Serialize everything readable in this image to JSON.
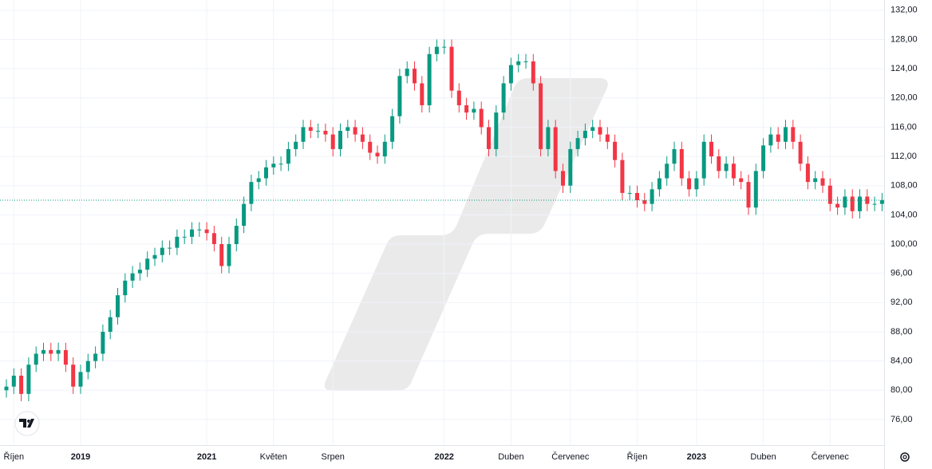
{
  "chart_data": {
    "type": "candlestick",
    "categories": [
      null,
      "Říjen",
      null,
      null,
      null,
      null,
      null,
      null,
      null,
      null,
      "2019",
      null,
      null,
      null,
      null,
      null,
      null,
      null,
      null,
      null,
      null,
      null,
      null,
      null,
      null,
      null,
      null,
      "2021",
      null,
      null,
      null,
      null,
      null,
      null,
      null,
      null,
      "Květen",
      null,
      null,
      null,
      null,
      null,
      null,
      null,
      "Srpen",
      null,
      null,
      null,
      null,
      null,
      null,
      null,
      null,
      null,
      null,
      null,
      null,
      null,
      null,
      "2022",
      null,
      null,
      null,
      null,
      null,
      null,
      null,
      null,
      "Duben",
      null,
      null,
      null,
      null,
      null,
      null,
      null,
      "Červenec",
      null,
      null,
      null,
      null,
      null,
      null,
      null,
      null,
      "Říjen",
      null,
      null,
      null,
      null,
      null,
      null,
      null,
      "2023",
      null,
      null,
      null,
      null,
      null,
      null,
      null,
      null,
      "Duben",
      null,
      null,
      null,
      null,
      null,
      null,
      null,
      null,
      "Červenec",
      null,
      null,
      null,
      null,
      null,
      null,
      null
    ],
    "open": [
      80,
      80.5,
      82,
      79.5,
      83.5,
      85,
      85.5,
      85,
      85.5,
      83.5,
      80.5,
      82.5,
      84,
      85,
      88,
      90,
      93,
      95,
      96,
      96.5,
      98,
      98.5,
      99.5,
      99.5,
      101,
      101,
      102,
      102,
      101.5,
      100,
      97,
      100,
      102.5,
      105.5,
      108.5,
      109,
      110.5,
      111,
      111,
      113,
      114,
      116,
      115.5,
      115.5,
      115,
      113,
      115.5,
      116,
      115,
      114,
      112.5,
      112,
      114,
      117.5,
      123,
      124,
      122,
      119,
      126,
      127,
      127,
      121,
      119,
      118,
      118.5,
      116,
      113,
      118,
      122,
      124.5,
      125,
      125,
      122,
      113,
      116,
      110,
      108,
      113,
      114.5,
      115.5,
      116,
      115,
      114,
      111.5,
      107,
      107,
      106,
      105.5,
      107.5,
      109,
      111,
      113,
      109,
      107.5,
      109,
      114,
      112,
      110,
      111,
      109,
      108.5,
      105,
      110,
      113.5,
      115,
      114,
      116,
      114,
      111,
      108.5,
      109,
      108,
      105.5,
      105,
      106.5,
      104.5,
      106.5,
      105.5,
      105.5
    ],
    "high": [
      81.5,
      83,
      83,
      84.5,
      86,
      86.5,
      86.5,
      86.5,
      86.5,
      84.5,
      83.5,
      85,
      86,
      89,
      91,
      94,
      96,
      97,
      97.5,
      99,
      99.5,
      100.5,
      100.5,
      102,
      102,
      103,
      103,
      103,
      102.5,
      101,
      101,
      103.5,
      106.5,
      109.5,
      110,
      111.5,
      112,
      112,
      114,
      115,
      117,
      117,
      116.5,
      116.5,
      116,
      116.5,
      117,
      117,
      116,
      115,
      113.5,
      115,
      118.5,
      124,
      125,
      125,
      123,
      127,
      128,
      128,
      128,
      122,
      120,
      119.5,
      119.5,
      117,
      119,
      123,
      125.5,
      126,
      126,
      126,
      123,
      117,
      117,
      111,
      114,
      115.5,
      116.5,
      117,
      117,
      116,
      115,
      112.5,
      108,
      108,
      107,
      108.5,
      110,
      112,
      114,
      114,
      110,
      110,
      115,
      115,
      113,
      112,
      112,
      110,
      109.5,
      111,
      114.5,
      116,
      116,
      117,
      117,
      115,
      112,
      110,
      110,
      109,
      106.5,
      107.5,
      107.5,
      107.5,
      107.5,
      106.5,
      107
    ],
    "low": [
      79,
      79.5,
      78.5,
      78.5,
      82.5,
      84,
      84,
      84,
      82.5,
      79.5,
      79.5,
      81.5,
      83,
      84,
      87,
      89,
      92,
      94,
      95,
      95.5,
      97,
      97.5,
      98.5,
      98.5,
      100,
      100,
      101,
      100.5,
      99,
      96,
      96,
      99,
      101.5,
      104.5,
      107.5,
      108,
      109.5,
      110,
      110,
      112,
      113,
      114.5,
      114.5,
      114,
      112,
      112,
      114.5,
      114,
      113,
      111.5,
      111,
      111,
      113,
      116.5,
      122,
      121,
      118,
      118,
      125,
      126,
      120,
      118,
      117,
      117,
      115,
      112,
      112,
      117,
      121,
      123.5,
      124,
      121,
      112,
      112,
      109,
      107,
      107,
      112,
      113.5,
      114.5,
      114,
      113,
      110.5,
      106,
      106,
      105,
      104.5,
      104.5,
      106.5,
      108,
      110,
      108,
      106.5,
      106.5,
      108,
      111,
      109,
      109,
      108,
      107.5,
      104,
      104,
      109,
      112.5,
      113,
      113,
      113,
      110,
      107.5,
      107.5,
      107,
      104.5,
      104,
      104,
      103.5,
      103.5,
      104.5,
      104.5,
      104.5
    ],
    "close": [
      80.5,
      82,
      79.5,
      83.5,
      85,
      85.5,
      85,
      85.5,
      83.5,
      80.5,
      82.5,
      84,
      85,
      88,
      90,
      93,
      95,
      96,
      96.5,
      98,
      98.5,
      99.5,
      99.5,
      101,
      101,
      102,
      102,
      101.5,
      100,
      97,
      100,
      102.5,
      105.5,
      108.5,
      109,
      110.5,
      111,
      111,
      113,
      114,
      116,
      115.5,
      115.5,
      115,
      113,
      115.5,
      116,
      115,
      114,
      112.5,
      112,
      114,
      117.5,
      123,
      124,
      122,
      119,
      126,
      127,
      127,
      121,
      119,
      118,
      118.5,
      116,
      113,
      118,
      122,
      124.5,
      125,
      125,
      122,
      113,
      116,
      110,
      108,
      113,
      114.5,
      115.5,
      116,
      115,
      114,
      111.5,
      107,
      107,
      106,
      105.5,
      107.5,
      109,
      111,
      113,
      109,
      107.5,
      109,
      114,
      112,
      110,
      111,
      109,
      108.5,
      105,
      110,
      113.5,
      115,
      114,
      116,
      114,
      111,
      108.5,
      109,
      108,
      105.5,
      105,
      106.5,
      104.5,
      106.5,
      105.5,
      105.5,
      106
    ],
    "up_color": "#089981",
    "down_color": "#f23645",
    "ylim": [
      72.5,
      133.4
    ],
    "yticks": [
      {
        "value": 76,
        "label": "76,00"
      },
      {
        "value": 80,
        "label": "80,00"
      },
      {
        "value": 84,
        "label": "84,00"
      },
      {
        "value": 88,
        "label": "88,00"
      },
      {
        "value": 92,
        "label": "92,00"
      },
      {
        "value": 96,
        "label": "96,00"
      },
      {
        "value": 100,
        "label": "100,00"
      },
      {
        "value": 104,
        "label": "104,00"
      },
      {
        "value": 108,
        "label": "108,00"
      },
      {
        "value": 112,
        "label": "112,00"
      },
      {
        "value": 116,
        "label": "116,00"
      },
      {
        "value": 120,
        "label": "120,00"
      },
      {
        "value": 124,
        "label": "124,00"
      },
      {
        "value": 128,
        "label": "128,00"
      },
      {
        "value": 132,
        "label": "132,00"
      }
    ],
    "grid": true
  }
}
